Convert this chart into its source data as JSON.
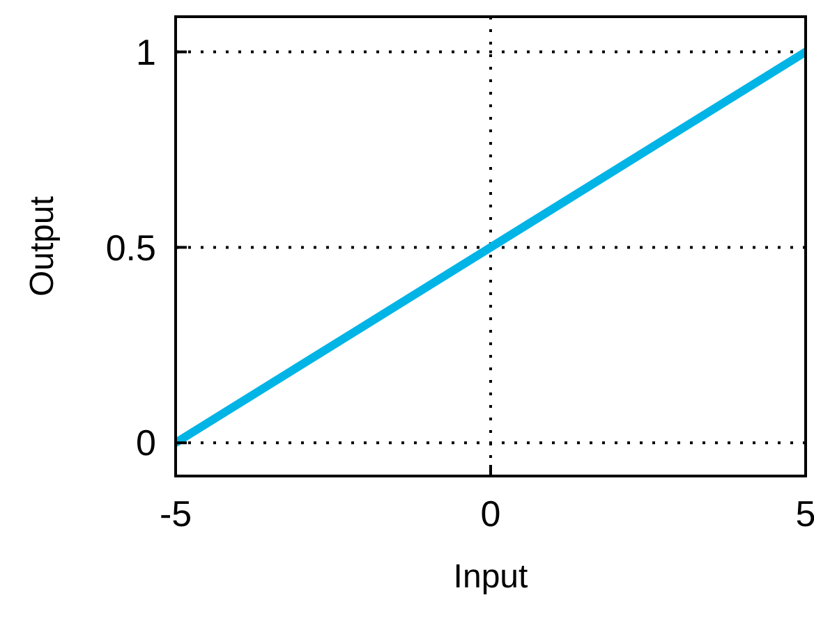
{
  "chart_data": {
    "type": "line",
    "xlabel": "Input",
    "ylabel": "Output",
    "x": [
      -5,
      5
    ],
    "series": [
      {
        "color": "#00b4e6",
        "values": [
          0,
          1
        ]
      }
    ],
    "xlim": [
      -5,
      5
    ],
    "ylim": [
      -0.085,
      1.09
    ],
    "xticks": [
      -5,
      0,
      5
    ],
    "yticks": [
      0,
      0.5,
      1
    ],
    "grid": true
  }
}
